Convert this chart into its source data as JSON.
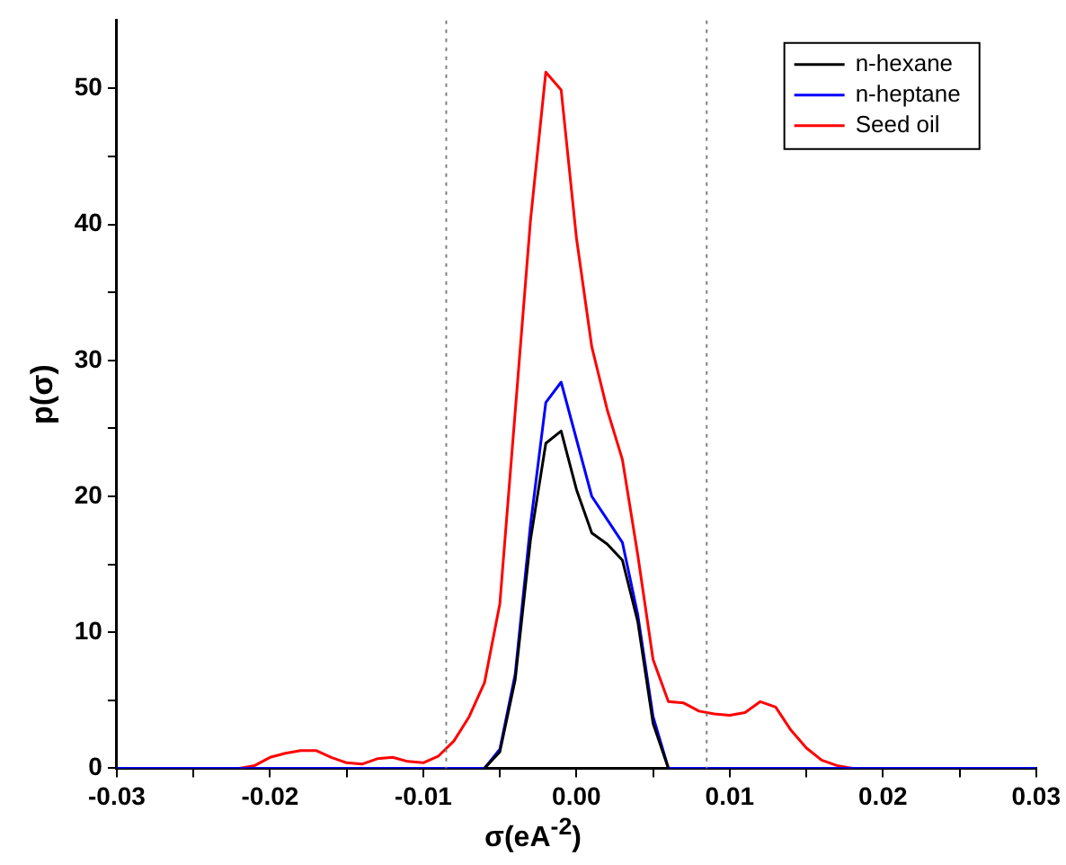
{
  "chart_data": {
    "type": "line",
    "xlabel": "σ(eA$^{-2}$)",
    "ylabel": "p(σ)",
    "x": [
      -0.03,
      -0.029,
      -0.028,
      -0.027,
      -0.026,
      -0.025,
      -0.024,
      -0.023,
      -0.022,
      -0.021,
      -0.02,
      -0.019,
      -0.018,
      -0.017,
      -0.016,
      -0.015,
      -0.014,
      -0.013,
      -0.012,
      -0.011,
      -0.01,
      -0.009,
      -0.008,
      -0.007,
      -0.006,
      -0.005,
      -0.004,
      -0.003,
      -0.002,
      -0.001,
      0,
      0.001,
      0.002,
      0.003,
      0.004,
      0.005,
      0.006,
      0.007,
      0.008,
      0.009,
      0.01,
      0.011,
      0.012,
      0.013,
      0.014,
      0.015,
      0.016,
      0.017,
      0.018,
      0.019,
      0.02,
      0.021,
      0.022,
      0.023,
      0.024,
      0.025,
      0.026,
      0.027,
      0.028,
      0.029,
      0.03
    ],
    "series": [
      {
        "name": "n-hexane",
        "color": "#000000",
        "values": [
          null,
          null,
          null,
          null,
          null,
          null,
          null,
          null,
          null,
          null,
          null,
          null,
          null,
          null,
          null,
          null,
          null,
          null,
          null,
          null,
          null,
          null,
          null,
          null,
          0,
          1.2,
          6.5,
          16.8,
          23.9,
          24.8,
          20.5,
          17.3,
          16.5,
          15.3,
          10.8,
          3.3,
          0,
          null,
          null,
          null,
          null,
          null,
          null,
          null,
          null,
          null,
          null,
          null,
          null,
          null,
          null,
          null,
          null,
          null,
          null,
          null,
          null,
          null,
          null,
          null,
          null
        ]
      },
      {
        "name": "n-heptane",
        "color": "#0000ff",
        "values": [
          0,
          0,
          0,
          0,
          0,
          0,
          0,
          0,
          0,
          0,
          0,
          0,
          0,
          0,
          0,
          0,
          0,
          0,
          0,
          0,
          0,
          0,
          0,
          0,
          0,
          1.4,
          6.9,
          17.9,
          26.9,
          28.4,
          24.2,
          20.0,
          18.3,
          16.6,
          11.3,
          3.8,
          0,
          0,
          0,
          0,
          0,
          0,
          0,
          0,
          0,
          0,
          0,
          0,
          0,
          0,
          0,
          0,
          0,
          0,
          0,
          0,
          0,
          0,
          0,
          0,
          0
        ]
      },
      {
        "name": "Seed oil",
        "color": "#ff0000",
        "values": [
          null,
          null,
          null,
          null,
          null,
          null,
          null,
          null,
          0,
          0.2,
          0.8,
          1.1,
          1.3,
          1.3,
          0.8,
          0.4,
          0.3,
          0.7,
          0.8,
          0.5,
          0.4,
          0.9,
          2.0,
          3.8,
          6.3,
          12.1,
          26.2,
          40.3,
          51.2,
          49.9,
          39,
          31.0,
          26.4,
          22.7,
          15.7,
          8.0,
          4.9,
          4.8,
          4.2,
          4.0,
          3.9,
          4.1,
          4.9,
          4.5,
          2.8,
          1.5,
          0.6,
          0.2,
          0,
          null,
          null,
          null,
          null,
          null,
          null,
          null,
          null,
          null,
          null,
          null,
          null
        ]
      }
    ],
    "xlim": [
      -0.03,
      0.03
    ],
    "xticks": [
      -0.03,
      {
        "value": -0.025,
        "label": null
      },
      -0.02,
      {
        "value": -0.015,
        "label": null
      },
      -0.01,
      {
        "value": -0.005,
        "label": null
      },
      {
        "value": 0,
        "label": "0.00"
      },
      {
        "value": 0.005,
        "label": null
      },
      0.01,
      {
        "value": 0.015,
        "label": null
      },
      0.02,
      {
        "value": 0.025,
        "label": null
      },
      0.03
    ],
    "ylim": [
      0,
      55
    ],
    "yticks": [
      0,
      {
        "value": 5,
        "label": null
      },
      10,
      {
        "value": 15,
        "label": null
      },
      20,
      {
        "value": 25,
        "label": null
      },
      30,
      {
        "value": 35,
        "label": null
      },
      40,
      {
        "value": 45,
        "label": null
      },
      50
    ],
    "ref_lines": [
      {
        "axis": "x",
        "value": -0.0085,
        "color": "#808080",
        "line_style": "dotted"
      },
      {
        "axis": "x",
        "value": 0.0085,
        "color": "#808080",
        "line_style": "dotted"
      }
    ],
    "grid": false,
    "legend": "top right",
    "marker": "none",
    "line_style": "solid"
  }
}
